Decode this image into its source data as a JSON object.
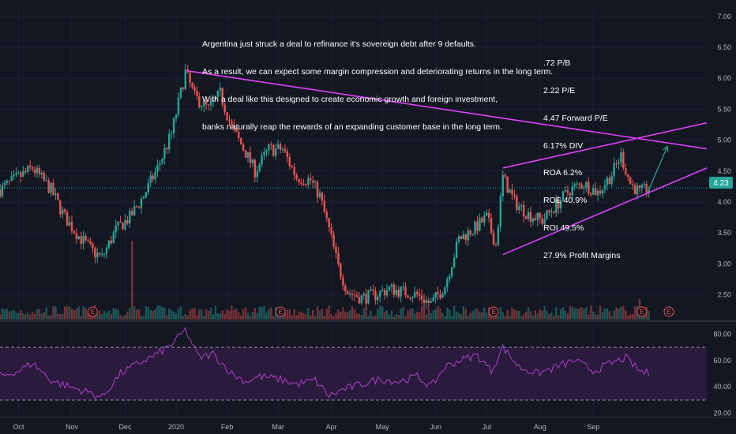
{
  "annotation_lines": [
    "Argentina just struck a deal to refinance it's sovereign debt after 9 defaults.",
    "As a result, we can expect some margin compression and deteriorating returns in the long term.",
    "With a deal like this designed to create economic growth and foreign investment,",
    "banks naturally reap the rewards of an expanding customer base in the long term."
  ],
  "stats_lines": [
    ".72 P/B",
    "2.22 P/E",
    "4.47 Forward P/E",
    "6.17% DIV",
    "ROA 6.2%",
    "ROE 40.9%",
    "ROI 49.5%",
    "27.9% Profit Margins"
  ],
  "price_label": "4.23",
  "colors": {
    "background": "#131722",
    "up": "#26a69a",
    "down": "#ef5350",
    "trendline": "#e040fb",
    "rsi_line": "#b03fc8",
    "rsi_band": "#2a1b3d",
    "price_line": "#26a69a",
    "axis_text": "#b2b5be",
    "grid": "#1e2230"
  },
  "chart_data": [
    {
      "type": "candlestick",
      "name": "price",
      "y_ticks": [
        "7.00",
        "6.50",
        "6.00",
        "5.50",
        "5.00",
        "4.50",
        "4.00",
        "3.50",
        "3.00",
        "2.50"
      ],
      "x_ticks": [
        "Oct",
        "Nov",
        "Dec",
        "2020",
        "Feb",
        "Mar",
        "Apr",
        "May",
        "Jun",
        "Jul",
        "Aug",
        "Sep"
      ],
      "ylim": [
        2.1,
        7.1
      ],
      "last_price": 4.23,
      "earnings_markers": [
        "E",
        "E",
        "E",
        "E"
      ],
      "path_points": [
        {
          "t": 0,
          "v": 4.2
        },
        {
          "t": 6,
          "v": 4.35
        },
        {
          "t": 14,
          "v": 4.55
        },
        {
          "t": 22,
          "v": 4.2
        },
        {
          "t": 28,
          "v": 3.75
        },
        {
          "t": 34,
          "v": 3.45
        },
        {
          "t": 40,
          "v": 3.2
        },
        {
          "t": 44,
          "v": 3.1
        },
        {
          "t": 50,
          "v": 3.55
        },
        {
          "t": 56,
          "v": 3.75
        },
        {
          "t": 62,
          "v": 4.1
        },
        {
          "t": 68,
          "v": 4.55
        },
        {
          "t": 74,
          "v": 5.1
        },
        {
          "t": 80,
          "v": 6.1
        },
        {
          "t": 84,
          "v": 5.7
        },
        {
          "t": 90,
          "v": 5.5
        },
        {
          "t": 95,
          "v": 5.75
        },
        {
          "t": 100,
          "v": 5.2
        },
        {
          "t": 106,
          "v": 4.8
        },
        {
          "t": 110,
          "v": 4.5
        },
        {
          "t": 116,
          "v": 4.85
        },
        {
          "t": 122,
          "v": 4.85
        },
        {
          "t": 128,
          "v": 4.4
        },
        {
          "t": 134,
          "v": 4.35
        },
        {
          "t": 138,
          "v": 4.1
        },
        {
          "t": 142,
          "v": 3.55
        },
        {
          "t": 146,
          "v": 2.95
        },
        {
          "t": 150,
          "v": 2.55
        },
        {
          "t": 156,
          "v": 2.45
        },
        {
          "t": 162,
          "v": 2.5
        },
        {
          "t": 168,
          "v": 2.6
        },
        {
          "t": 174,
          "v": 2.55
        },
        {
          "t": 180,
          "v": 2.5
        },
        {
          "t": 186,
          "v": 2.35
        },
        {
          "t": 192,
          "v": 2.65
        },
        {
          "t": 198,
          "v": 3.4
        },
        {
          "t": 204,
          "v": 3.55
        },
        {
          "t": 210,
          "v": 3.75
        },
        {
          "t": 214,
          "v": 3.3
        },
        {
          "t": 217,
          "v": 4.4
        },
        {
          "t": 222,
          "v": 4.0
        },
        {
          "t": 228,
          "v": 3.8
        },
        {
          "t": 234,
          "v": 3.7
        },
        {
          "t": 240,
          "v": 3.95
        },
        {
          "t": 246,
          "v": 4.2
        },
        {
          "t": 252,
          "v": 4.3
        },
        {
          "t": 258,
          "v": 4.15
        },
        {
          "t": 264,
          "v": 4.45
        },
        {
          "t": 268,
          "v": 4.75
        },
        {
          "t": 272,
          "v": 4.3
        },
        {
          "t": 276,
          "v": 4.15
        },
        {
          "t": 280,
          "v": 4.23
        }
      ],
      "trendlines": [
        {
          "from": {
            "t": 81,
            "v": 6.12
          },
          "to": {
            "t": 305,
            "v": 4.86
          }
        },
        {
          "from": {
            "t": 217,
            "v": 4.55
          },
          "to": {
            "t": 305,
            "v": 5.28
          }
        },
        {
          "from": {
            "t": 217,
            "v": 3.15
          },
          "to": {
            "t": 305,
            "v": 4.55
          }
        }
      ],
      "projection_arrow": {
        "from": {
          "t": 280,
          "v": 4.2
        },
        "to": {
          "t": 288,
          "v": 4.9
        }
      }
    },
    {
      "type": "line",
      "name": "RSI",
      "y_ticks": [
        "80.00",
        "60.00",
        "40.00",
        "20.00"
      ],
      "ylim": [
        18,
        88
      ],
      "band": [
        30,
        70
      ],
      "path_points": [
        {
          "t": 0,
          "v": 48
        },
        {
          "t": 8,
          "v": 52
        },
        {
          "t": 14,
          "v": 58
        },
        {
          "t": 22,
          "v": 45
        },
        {
          "t": 30,
          "v": 40
        },
        {
          "t": 38,
          "v": 36
        },
        {
          "t": 44,
          "v": 32
        },
        {
          "t": 52,
          "v": 50
        },
        {
          "t": 60,
          "v": 58
        },
        {
          "t": 68,
          "v": 65
        },
        {
          "t": 74,
          "v": 72
        },
        {
          "t": 80,
          "v": 83
        },
        {
          "t": 86,
          "v": 62
        },
        {
          "t": 92,
          "v": 65
        },
        {
          "t": 100,
          "v": 50
        },
        {
          "t": 106,
          "v": 44
        },
        {
          "t": 112,
          "v": 48
        },
        {
          "t": 120,
          "v": 46
        },
        {
          "t": 128,
          "v": 42
        },
        {
          "t": 136,
          "v": 45
        },
        {
          "t": 142,
          "v": 33
        },
        {
          "t": 148,
          "v": 38
        },
        {
          "t": 156,
          "v": 42
        },
        {
          "t": 164,
          "v": 46
        },
        {
          "t": 172,
          "v": 44
        },
        {
          "t": 180,
          "v": 48
        },
        {
          "t": 186,
          "v": 40
        },
        {
          "t": 192,
          "v": 55
        },
        {
          "t": 198,
          "v": 60
        },
        {
          "t": 206,
          "v": 64
        },
        {
          "t": 212,
          "v": 52
        },
        {
          "t": 217,
          "v": 70
        },
        {
          "t": 224,
          "v": 55
        },
        {
          "t": 232,
          "v": 50
        },
        {
          "t": 240,
          "v": 55
        },
        {
          "t": 248,
          "v": 60
        },
        {
          "t": 256,
          "v": 52
        },
        {
          "t": 264,
          "v": 58
        },
        {
          "t": 270,
          "v": 62
        },
        {
          "t": 276,
          "v": 52
        },
        {
          "t": 280,
          "v": 50
        }
      ]
    }
  ]
}
